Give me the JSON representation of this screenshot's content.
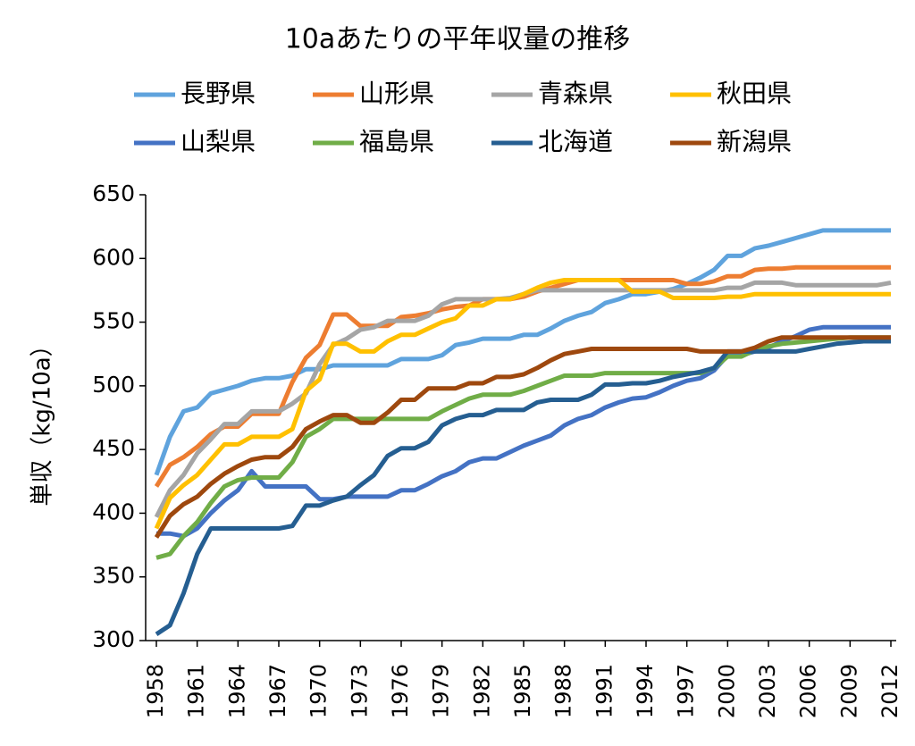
{
  "chart_data": {
    "type": "line",
    "title": "10aあたりの平年収量の推移",
    "y_label": "単収（kg/10a）",
    "x": [
      1958,
      1959,
      1960,
      1961,
      1962,
      1963,
      1964,
      1965,
      1966,
      1967,
      1968,
      1969,
      1970,
      1971,
      1972,
      1973,
      1974,
      1975,
      1976,
      1977,
      1978,
      1979,
      1980,
      1981,
      1982,
      1983,
      1984,
      1985,
      1986,
      1987,
      1988,
      1989,
      1990,
      1991,
      1992,
      1993,
      1994,
      1995,
      1996,
      1997,
      1998,
      1999,
      2000,
      2001,
      2002,
      2003,
      2004,
      2005,
      2006,
      2007,
      2008,
      2009,
      2010,
      2011,
      2012
    ],
    "xlim": [
      1958,
      2012
    ],
    "xticks": [
      1958,
      1961,
      1964,
      1967,
      1970,
      1973,
      1976,
      1979,
      1982,
      1985,
      1988,
      1991,
      1994,
      1997,
      2000,
      2003,
      2006,
      2009,
      2012
    ],
    "ylim": [
      300,
      650
    ],
    "yticks": [
      300,
      350,
      400,
      450,
      500,
      550,
      600,
      650
    ],
    "grid": false,
    "legend": "top",
    "series": [
      {
        "name": "長野県",
        "color": "#5fa3dd",
        "values": [
          430,
          460,
          480,
          483,
          494,
          497,
          500,
          504,
          506,
          506,
          508,
          513,
          513,
          516,
          516,
          516,
          516,
          516,
          521,
          521,
          521,
          524,
          532,
          534,
          537,
          537,
          537,
          540,
          540,
          545,
          551,
          555,
          558,
          565,
          568,
          572,
          572,
          574,
          576,
          580,
          585,
          591,
          602,
          602,
          608,
          610,
          613,
          616,
          619,
          622,
          622,
          622,
          622,
          622,
          622
        ]
      },
      {
        "name": "山形県",
        "color": "#ed7d31",
        "values": [
          421,
          438,
          444,
          452,
          462,
          468,
          468,
          478,
          478,
          478,
          503,
          522,
          532,
          556,
          556,
          547,
          547,
          547,
          554,
          555,
          557,
          560,
          562,
          563,
          568,
          568,
          568,
          570,
          574,
          577,
          580,
          583,
          583,
          583,
          583,
          583,
          583,
          583,
          583,
          580,
          580,
          582,
          586,
          586,
          591,
          592,
          592,
          593,
          593,
          593,
          593,
          593,
          593,
          593,
          593
        ]
      },
      {
        "name": "青森県",
        "color": "#a5a5a5",
        "values": [
          397,
          418,
          430,
          447,
          458,
          470,
          470,
          480,
          480,
          480,
          486,
          494,
          517,
          532,
          537,
          544,
          546,
          551,
          551,
          551,
          555,
          564,
          568,
          568,
          568,
          568,
          569,
          572,
          575,
          575,
          575,
          575,
          575,
          575,
          575,
          575,
          575,
          575,
          575,
          575,
          575,
          575,
          577,
          577,
          581,
          581,
          581,
          579,
          579,
          579,
          579,
          579,
          579,
          579,
          581
        ]
      },
      {
        "name": "秋田県",
        "color": "#ffc000",
        "values": [
          388,
          412,
          422,
          430,
          442,
          454,
          454,
          460,
          460,
          460,
          466,
          496,
          505,
          533,
          533,
          527,
          527,
          535,
          540,
          540,
          545,
          550,
          553,
          563,
          563,
          568,
          568,
          572,
          577,
          581,
          583,
          583,
          583,
          583,
          583,
          574,
          574,
          574,
          569,
          569,
          569,
          569,
          570,
          570,
          572,
          572,
          572,
          572,
          572,
          572,
          572,
          572,
          572,
          572,
          572
        ]
      },
      {
        "name": "山梨県",
        "color": "#4472c4",
        "values": [
          384,
          384,
          382,
          388,
          400,
          410,
          418,
          433,
          421,
          421,
          421,
          421,
          411,
          411,
          413,
          413,
          413,
          413,
          418,
          418,
          423,
          429,
          433,
          440,
          443,
          443,
          448,
          453,
          457,
          461,
          469,
          474,
          477,
          483,
          487,
          490,
          491,
          495,
          500,
          504,
          506,
          512,
          524,
          524,
          527,
          530,
          535,
          539,
          544,
          546,
          546,
          546,
          546,
          546,
          546
        ]
      },
      {
        "name": "福島県",
        "color": "#70ad47",
        "values": [
          365,
          368,
          382,
          393,
          408,
          421,
          426,
          428,
          428,
          428,
          440,
          460,
          466,
          474,
          474,
          474,
          474,
          474,
          474,
          474,
          474,
          480,
          485,
          490,
          493,
          493,
          493,
          496,
          500,
          504,
          508,
          508,
          508,
          510,
          510,
          510,
          510,
          510,
          510,
          510,
          510,
          514,
          523,
          523,
          528,
          531,
          533,
          534,
          535,
          536,
          537,
          538,
          538,
          538,
          538
        ]
      },
      {
        "name": "北海道",
        "color": "#255e91",
        "values": [
          305,
          312,
          337,
          368,
          388,
          388,
          388,
          388,
          388,
          388,
          390,
          406,
          406,
          410,
          413,
          422,
          430,
          445,
          451,
          451,
          456,
          469,
          474,
          477,
          477,
          481,
          481,
          481,
          487,
          489,
          489,
          489,
          493,
          501,
          501,
          502,
          502,
          504,
          507,
          509,
          511,
          514,
          527,
          527,
          527,
          527,
          527,
          527,
          529,
          531,
          533,
          534,
          535,
          535,
          535
        ]
      },
      {
        "name": "新潟県",
        "color": "#9e480e",
        "values": [
          381,
          398,
          407,
          413,
          423,
          431,
          437,
          442,
          444,
          444,
          452,
          466,
          472,
          477,
          477,
          471,
          471,
          479,
          489,
          489,
          498,
          498,
          498,
          502,
          502,
          507,
          507,
          509,
          514,
          520,
          525,
          527,
          529,
          529,
          529,
          529,
          529,
          529,
          529,
          529,
          527,
          527,
          527,
          527,
          530,
          535,
          538,
          538,
          538,
          538,
          538,
          538,
          538,
          538,
          538
        ]
      }
    ]
  }
}
